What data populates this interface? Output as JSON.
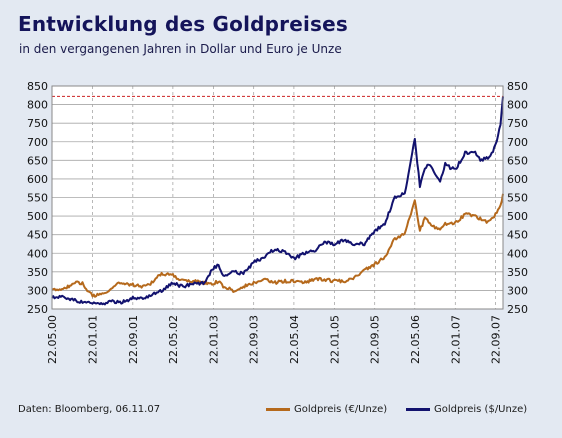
{
  "header": {
    "title": "Entwicklung des Goldpreises",
    "subtitle": "in den vergangenen Jahren in Dollar und Euro je Unze"
  },
  "footer": {
    "source": "Daten: Bloomberg, 06.11.07"
  },
  "colors": {
    "background": "#e3e9f2",
    "plot_background": "#ffffff",
    "euro_series": "#b5691c",
    "dollar_series": "#12126e",
    "reference_line": "#cc2222",
    "grid": "#a7a7a7"
  },
  "chart_data": {
    "type": "line",
    "title": "Entwicklung des Goldpreises",
    "subtitle": "in den vergangenen Jahren in Dollar und Euro je Unze",
    "xlabel": "",
    "ylabel": "",
    "ylim": [
      250,
      850
    ],
    "y_ticks": [
      250,
      300,
      350,
      400,
      450,
      500,
      550,
      600,
      650,
      700,
      750,
      800,
      850
    ],
    "y_axes": [
      "left",
      "right"
    ],
    "x_tick_labels": [
      "22.05.00",
      "22.01.01",
      "22.09.01",
      "22.05.02",
      "22.01.03",
      "22.09.03",
      "22.05.04",
      "22.01.05",
      "22.09.05",
      "22.05.06",
      "22.01.07",
      "22.09.07"
    ],
    "x_range": [
      "22.05.00",
      "06.11.07"
    ],
    "grid": "dashed vertical at x ticks, solid horizontal at y ticks",
    "legend": "bottom-right",
    "reference_line": {
      "y": 822,
      "style": "dashed",
      "color": "#cc2222"
    },
    "series": [
      {
        "name": "Goldpreis (€/Unze)",
        "color": "#b5691c",
        "points": [
          [
            "22.05.00",
            300
          ],
          [
            "22.07.00",
            305
          ],
          [
            "22.09.00",
            315
          ],
          [
            "22.10.00",
            322
          ],
          [
            "22.11.00",
            318
          ],
          [
            "22.12.00",
            300
          ],
          [
            "22.01.01",
            285
          ],
          [
            "22.03.01",
            290
          ],
          [
            "22.05.01",
            305
          ],
          [
            "22.06.01",
            318
          ],
          [
            "22.07.01",
            320
          ],
          [
            "22.09.01",
            315
          ],
          [
            "22.11.01",
            310
          ],
          [
            "22.01.02",
            322
          ],
          [
            "22.02.02",
            340
          ],
          [
            "22.03.02",
            345
          ],
          [
            "22.05.02",
            340
          ],
          [
            "22.06.02",
            330
          ],
          [
            "22.09.02",
            325
          ],
          [
            "22.12.02",
            320
          ],
          [
            "22.01.03",
            318
          ],
          [
            "22.02.03",
            325
          ],
          [
            "22.03.03",
            310
          ],
          [
            "22.05.03",
            300
          ],
          [
            "22.07.03",
            310
          ],
          [
            "22.09.03",
            320
          ],
          [
            "22.11.03",
            330
          ],
          [
            "22.01.04",
            320
          ],
          [
            "22.03.04",
            325
          ],
          [
            "22.05.04",
            325
          ],
          [
            "22.07.04",
            320
          ],
          [
            "22.09.04",
            330
          ],
          [
            "22.11.04",
            330
          ],
          [
            "22.01.05",
            325
          ],
          [
            "22.03.05",
            325
          ],
          [
            "22.05.05",
            335
          ],
          [
            "22.07.05",
            355
          ],
          [
            "22.09.05",
            370
          ],
          [
            "22.11.05",
            390
          ],
          [
            "22.01.06",
            440
          ],
          [
            "22.03.06",
            450
          ],
          [
            "22.05.06",
            545
          ],
          [
            "22.06.06",
            460
          ],
          [
            "22.07.06",
            495
          ],
          [
            "22.08.06",
            480
          ],
          [
            "22.10.06",
            460
          ],
          [
            "22.11.06",
            480
          ],
          [
            "22.01.07",
            480
          ],
          [
            "22.03.07",
            505
          ],
          [
            "22.05.07",
            500
          ],
          [
            "22.07.07",
            485
          ],
          [
            "22.08.07",
            490
          ],
          [
            "22.09.07",
            505
          ],
          [
            "22.10.07",
            525
          ],
          [
            "06.11.07",
            560
          ]
        ]
      },
      {
        "name": "Goldpreis ($/Unze)",
        "color": "#12126e",
        "points": [
          [
            "22.05.00",
            280
          ],
          [
            "22.07.00",
            285
          ],
          [
            "22.09.00",
            275
          ],
          [
            "22.11.00",
            268
          ],
          [
            "22.01.01",
            265
          ],
          [
            "22.03.01",
            262
          ],
          [
            "22.05.01",
            270
          ],
          [
            "22.07.01",
            268
          ],
          [
            "22.09.01",
            280
          ],
          [
            "22.11.01",
            278
          ],
          [
            "22.01.02",
            290
          ],
          [
            "22.03.02",
            300
          ],
          [
            "22.05.02",
            320
          ],
          [
            "22.07.02",
            310
          ],
          [
            "22.09.02",
            318
          ],
          [
            "22.11.02",
            320
          ],
          [
            "22.01.03",
            360
          ],
          [
            "22.02.03",
            370
          ],
          [
            "22.03.03",
            340
          ],
          [
            "22.05.03",
            350
          ],
          [
            "22.07.03",
            345
          ],
          [
            "22.09.03",
            375
          ],
          [
            "22.11.03",
            390
          ],
          [
            "22.01.04",
            410
          ],
          [
            "22.03.04",
            405
          ],
          [
            "22.05.04",
            385
          ],
          [
            "22.07.04",
            400
          ],
          [
            "22.09.04",
            405
          ],
          [
            "22.11.04",
            430
          ],
          [
            "22.01.05",
            425
          ],
          [
            "22.03.05",
            435
          ],
          [
            "22.05.05",
            425
          ],
          [
            "22.07.05",
            425
          ],
          [
            "22.09.05",
            460
          ],
          [
            "22.11.05",
            480
          ],
          [
            "22.01.06",
            550
          ],
          [
            "22.03.06",
            560
          ],
          [
            "22.05.06",
            710
          ],
          [
            "22.06.06",
            580
          ],
          [
            "22.07.06",
            630
          ],
          [
            "22.08.06",
            640
          ],
          [
            "22.10.06",
            590
          ],
          [
            "22.11.06",
            640
          ],
          [
            "22.12.06",
            630
          ],
          [
            "22.01.07",
            625
          ],
          [
            "22.03.07",
            670
          ],
          [
            "22.05.07",
            670
          ],
          [
            "22.06.07",
            650
          ],
          [
            "22.08.07",
            660
          ],
          [
            "22.09.07",
            690
          ],
          [
            "22.10.07",
            750
          ],
          [
            "06.11.07",
            822
          ]
        ]
      }
    ]
  }
}
